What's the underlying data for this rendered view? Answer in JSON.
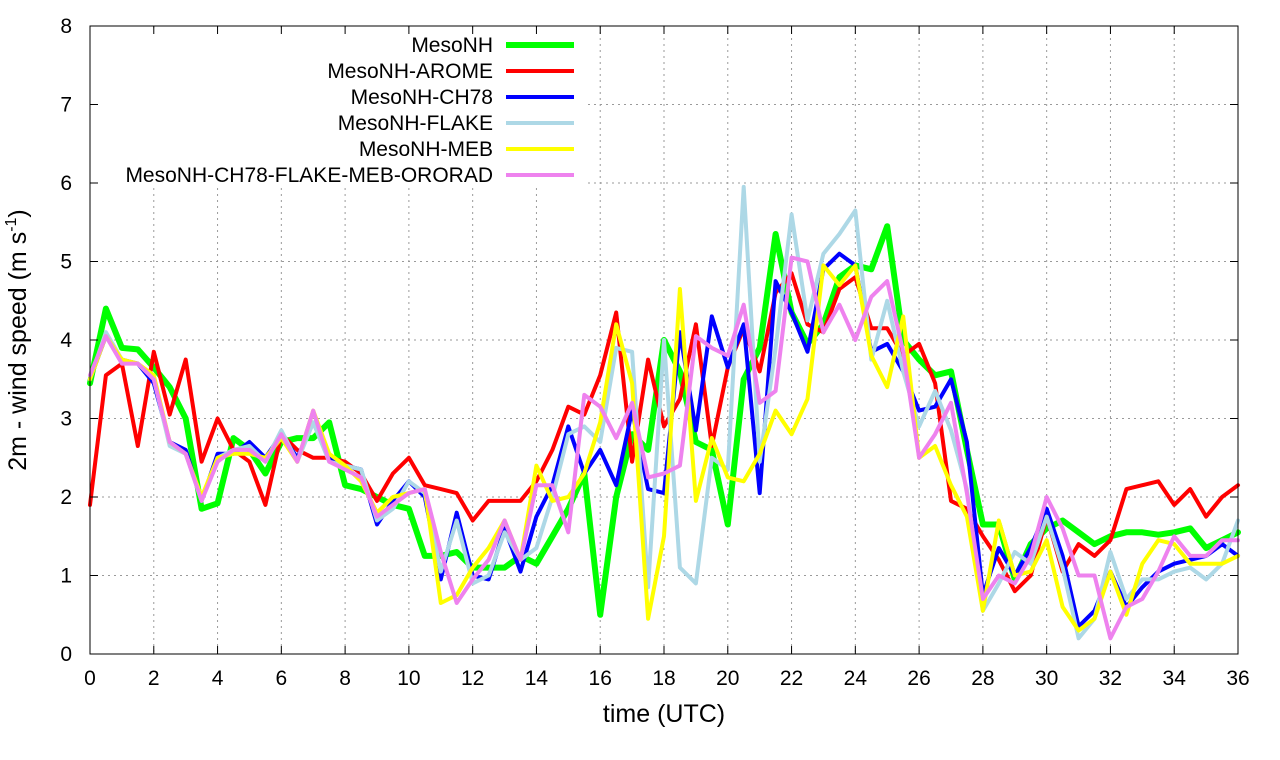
{
  "chart_data": {
    "type": "line",
    "title": "",
    "xlabel": "time (UTC)",
    "ylabel": "2m - wind speed  (m s",
    "ylabel_sup": "-1",
    "ylabel_close": ")",
    "xlim": [
      0,
      36
    ],
    "ylim": [
      0,
      8
    ],
    "xticks": [
      "0",
      "2",
      "4",
      "6",
      "8",
      "10",
      "12",
      "14",
      "16",
      "18",
      "20",
      "22",
      "24",
      "26",
      "28",
      "30",
      "32",
      "34",
      "36"
    ],
    "yticks": [
      "0",
      "1",
      "2",
      "3",
      "4",
      "5",
      "6",
      "7",
      "8"
    ],
    "grid": true,
    "legend_position": "top-left",
    "x": [
      0,
      0.5,
      1,
      1.5,
      2,
      2.5,
      3,
      3.5,
      4,
      4.5,
      5,
      5.5,
      6,
      6.5,
      7,
      7.5,
      8,
      8.5,
      9,
      9.5,
      10,
      10.5,
      11,
      11.5,
      12,
      12.5,
      13,
      13.5,
      14,
      14.5,
      15,
      15.5,
      16,
      16.5,
      17,
      17.5,
      18,
      18.5,
      19,
      19.5,
      20,
      20.5,
      21,
      21.5,
      22,
      22.5,
      23,
      23.5,
      24,
      24.5,
      25,
      25.5,
      26,
      26.5,
      27,
      27.5,
      28,
      28.5,
      29,
      29.5,
      30,
      30.5,
      31,
      31.5,
      32,
      32.5,
      33,
      33.5,
      34,
      34.5,
      35,
      35.5,
      36
    ],
    "series": [
      {
        "name": "MesoNH",
        "color": "#00ff00",
        "width": 6,
        "values": [
          3.45,
          4.4,
          3.9,
          3.88,
          3.65,
          3.4,
          3.0,
          1.85,
          1.92,
          2.75,
          2.6,
          2.3,
          2.7,
          2.75,
          2.75,
          2.95,
          2.15,
          2.1,
          2.0,
          1.9,
          1.85,
          1.25,
          1.25,
          1.3,
          1.1,
          1.1,
          1.1,
          1.25,
          1.15,
          1.5,
          1.85,
          2.3,
          0.5,
          2.0,
          2.8,
          2.6,
          4.0,
          3.6,
          2.7,
          2.6,
          1.65,
          3.5,
          3.9,
          5.35,
          4.35,
          3.95,
          4.2,
          4.8,
          4.95,
          4.9,
          5.45,
          4.0,
          3.75,
          3.55,
          3.6,
          2.6,
          1.65,
          1.65,
          0.95,
          1.4,
          1.6,
          1.7,
          1.55,
          1.4,
          1.5,
          1.55,
          1.55,
          1.52,
          1.55,
          1.6,
          1.35,
          1.45,
          1.55
        ]
      },
      {
        "name": "MesoNH-AROME",
        "color": "#ff0000",
        "width": 4,
        "values": [
          1.9,
          3.55,
          3.7,
          2.65,
          3.85,
          3.05,
          3.75,
          2.45,
          3.0,
          2.6,
          2.45,
          1.9,
          2.8,
          2.6,
          2.5,
          2.5,
          2.45,
          2.3,
          1.95,
          2.3,
          2.5,
          2.15,
          2.1,
          2.05,
          1.7,
          1.95,
          1.95,
          1.95,
          2.2,
          2.6,
          3.15,
          3.05,
          3.55,
          4.35,
          2.45,
          3.75,
          2.9,
          3.25,
          4.2,
          2.65,
          3.65,
          4.15,
          3.6,
          4.6,
          4.85,
          4.2,
          4.1,
          4.65,
          4.8,
          4.15,
          4.15,
          3.8,
          3.95,
          3.45,
          1.95,
          1.85,
          1.5,
          1.2,
          0.8,
          1.0,
          1.75,
          1.05,
          1.4,
          1.25,
          1.45,
          2.1,
          2.15,
          2.2,
          1.9,
          2.1,
          1.75,
          2.0,
          2.15
        ]
      },
      {
        "name": "MesoNH-CH78",
        "color": "#0000ff",
        "width": 4,
        "values": [
          3.5,
          4.05,
          3.75,
          3.7,
          3.45,
          2.7,
          2.6,
          1.95,
          2.55,
          2.55,
          2.7,
          2.5,
          2.8,
          2.5,
          2.95,
          2.5,
          2.4,
          2.35,
          1.65,
          1.95,
          2.2,
          2.0,
          0.95,
          1.8,
          1.0,
          0.95,
          1.6,
          1.05,
          1.75,
          2.15,
          2.9,
          2.3,
          2.6,
          2.15,
          3.1,
          2.1,
          2.05,
          4.1,
          2.85,
          4.3,
          3.65,
          4.2,
          2.05,
          4.75,
          4.35,
          3.85,
          4.9,
          5.1,
          4.95,
          3.85,
          3.95,
          3.6,
          3.1,
          3.15,
          3.5,
          2.7,
          0.75,
          1.35,
          1.0,
          1.35,
          1.85,
          1.25,
          0.35,
          0.55,
          1.05,
          0.6,
          0.85,
          1.05,
          1.15,
          1.2,
          1.25,
          1.4,
          1.25
        ]
      },
      {
        "name": "MesoNH-FLAKE",
        "color": "#add8e6",
        "width": 4,
        "values": [
          3.5,
          4.1,
          3.75,
          3.7,
          3.5,
          2.65,
          2.55,
          1.95,
          2.5,
          2.6,
          2.65,
          2.45,
          2.85,
          2.45,
          2.95,
          2.45,
          2.4,
          2.35,
          1.7,
          1.85,
          2.2,
          2.05,
          1.05,
          1.7,
          0.9,
          1.0,
          1.55,
          1.2,
          1.35,
          2.0,
          2.8,
          2.9,
          2.7,
          3.9,
          3.85,
          0.85,
          4.0,
          1.1,
          0.9,
          2.5,
          2.35,
          5.95,
          2.45,
          3.9,
          5.6,
          4.25,
          5.1,
          5.35,
          5.65,
          3.75,
          4.5,
          3.6,
          2.9,
          3.35,
          2.85,
          2.1,
          0.55,
          0.9,
          1.3,
          1.15,
          1.75,
          1.1,
          0.2,
          0.45,
          1.3,
          0.7,
          0.95,
          0.95,
          1.05,
          1.1,
          0.95,
          1.15,
          1.7
        ]
      },
      {
        "name": "MesoNH-MEB",
        "color": "#ffff00",
        "width": 4,
        "values": [
          3.5,
          4.05,
          3.75,
          3.7,
          3.55,
          2.7,
          2.55,
          2.0,
          2.5,
          2.55,
          2.55,
          2.5,
          2.75,
          2.45,
          3.1,
          2.55,
          2.4,
          2.2,
          1.8,
          2.0,
          2.05,
          2.1,
          0.65,
          0.75,
          1.1,
          1.35,
          1.7,
          1.2,
          2.4,
          1.95,
          2.0,
          2.3,
          2.95,
          4.2,
          3.45,
          0.45,
          1.5,
          4.65,
          1.95,
          2.75,
          2.25,
          2.2,
          2.55,
          3.1,
          2.8,
          3.25,
          4.95,
          4.7,
          4.95,
          3.8,
          3.4,
          4.3,
          2.5,
          2.65,
          2.15,
          1.75,
          0.55,
          1.7,
          1.0,
          1.05,
          1.45,
          0.6,
          0.3,
          0.45,
          1.05,
          0.5,
          1.15,
          1.45,
          1.4,
          1.15,
          1.15,
          1.15,
          1.25
        ]
      },
      {
        "name": "MesoNH-CH78-FLAKE-MEB-ORORAD",
        "color": "#ee82ee",
        "width": 4,
        "values": [
          3.55,
          4.05,
          3.7,
          3.7,
          3.5,
          2.7,
          2.55,
          1.95,
          2.45,
          2.6,
          2.6,
          2.45,
          2.8,
          2.45,
          3.1,
          2.45,
          2.35,
          2.25,
          1.75,
          1.9,
          2.05,
          2.1,
          1.3,
          0.65,
          0.95,
          1.2,
          1.7,
          1.2,
          2.15,
          2.15,
          1.55,
          3.3,
          3.15,
          2.75,
          3.2,
          2.25,
          2.3,
          2.4,
          4.05,
          3.9,
          3.8,
          4.45,
          3.2,
          3.35,
          5.05,
          5.0,
          4.1,
          4.45,
          4.0,
          4.55,
          4.75,
          3.85,
          2.5,
          2.8,
          3.2,
          2.05,
          0.7,
          1.0,
          0.9,
          1.25,
          2.0,
          1.6,
          1.0,
          1.0,
          0.2,
          0.6,
          0.7,
          1.05,
          1.5,
          1.25,
          1.25,
          1.45,
          1.45
        ]
      }
    ]
  }
}
